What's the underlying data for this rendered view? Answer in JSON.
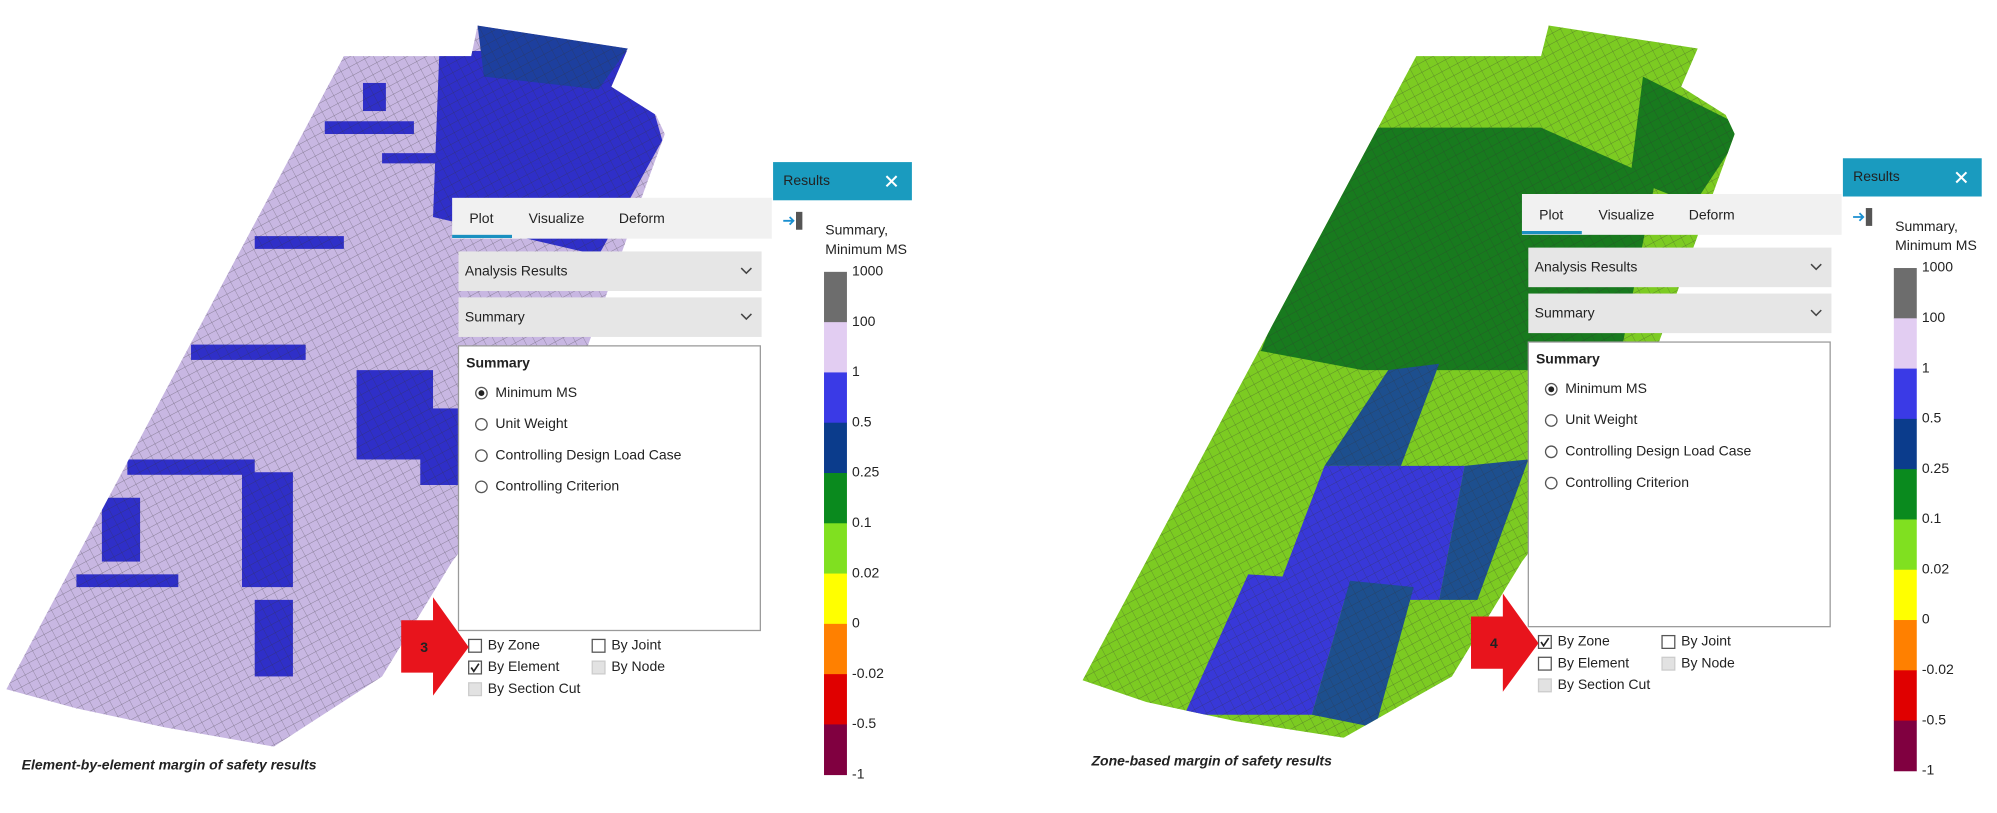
{
  "panels": [
    {
      "tabs": [
        "Plot",
        "Visualize",
        "Deform"
      ],
      "dropdowns": [
        "Analysis Results",
        "Summary"
      ],
      "group_title": "Summary",
      "options": [
        {
          "label": "Minimum MS",
          "selected": true
        },
        {
          "label": "Unit Weight",
          "selected": false
        },
        {
          "label": "Controlling Design Load Case",
          "selected": false
        },
        {
          "label": "Controlling Criterion",
          "selected": false
        }
      ],
      "checkboxes": [
        {
          "label": "By Zone",
          "checked": false,
          "enabled": true
        },
        {
          "label": "By Joint",
          "checked": false,
          "enabled": true
        },
        {
          "label": "By Element",
          "checked": true,
          "enabled": true
        },
        {
          "label": "By Node",
          "checked": false,
          "enabled": false
        },
        {
          "label": "By Section Cut",
          "checked": false,
          "enabled": false
        }
      ],
      "step": "3",
      "results": {
        "title": "Results",
        "legend_title": [
          "Summary,",
          "Minimum MS"
        ],
        "labels": [
          "1000",
          "100",
          "1",
          "0.5",
          "0.25",
          "0.1",
          "0.02",
          "0",
          "-0.02",
          "-0.5",
          "-1"
        ],
        "colors": [
          "#6d6d6d",
          "#e2cdf2",
          "#3a3ae6",
          "#0b3c8c",
          "#0a8a1e",
          "#80e020",
          "#ffff00",
          "#ff8000",
          "#e00000",
          "#800040"
        ]
      },
      "caption": "Element-by-element margin of safety results"
    },
    {
      "tabs": [
        "Plot",
        "Visualize",
        "Deform"
      ],
      "dropdowns": [
        "Analysis Results",
        "Summary"
      ],
      "group_title": "Summary",
      "options": [
        {
          "label": "Minimum MS",
          "selected": true
        },
        {
          "label": "Unit Weight",
          "selected": false
        },
        {
          "label": "Controlling Design Load Case",
          "selected": false
        },
        {
          "label": "Controlling Criterion",
          "selected": false
        }
      ],
      "checkboxes": [
        {
          "label": "By Zone",
          "checked": true,
          "enabled": true
        },
        {
          "label": "By Joint",
          "checked": false,
          "enabled": true
        },
        {
          "label": "By Element",
          "checked": false,
          "enabled": true
        },
        {
          "label": "By Node",
          "checked": false,
          "enabled": false
        },
        {
          "label": "By Section Cut",
          "checked": false,
          "enabled": false
        }
      ],
      "step": "4",
      "results": {
        "title": "Results",
        "legend_title": [
          "Summary,",
          "Minimum MS"
        ],
        "labels": [
          "1000",
          "100",
          "1",
          "0.5",
          "0.25",
          "0.1",
          "0.02",
          "0",
          "-0.02",
          "-0.5",
          "-1"
        ],
        "colors": [
          "#6d6d6d",
          "#e2cdf2",
          "#3a3ae6",
          "#0b3c8c",
          "#0a8a1e",
          "#80e020",
          "#ffff00",
          "#ff8000",
          "#e00000",
          "#800040"
        ]
      },
      "caption": "Zone-based margin of safety results"
    }
  ]
}
